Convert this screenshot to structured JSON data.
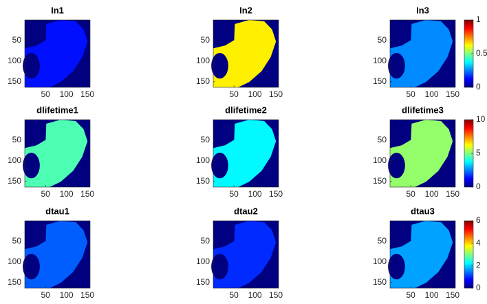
{
  "chart_data": [
    {
      "type": "heatmap",
      "title": "In1",
      "colormap": "jet",
      "clim": [
        0,
        1
      ],
      "background_value": 0,
      "tissue_value": 0.14,
      "xlim": [
        0.5,
        156.5
      ],
      "ylim": [
        0.5,
        163.5
      ],
      "xticks": [
        50,
        100,
        150
      ],
      "yticks": [
        50,
        100,
        150
      ],
      "colorbar": false
    },
    {
      "type": "heatmap",
      "title": "In2",
      "colormap": "jet",
      "clim": [
        0,
        1
      ],
      "background_value": 0,
      "tissue_value": 0.64,
      "xlim": [
        0.5,
        156.5
      ],
      "ylim": [
        0.5,
        163.5
      ],
      "xticks": [
        50,
        100,
        150
      ],
      "yticks": [
        50,
        100,
        150
      ],
      "colorbar": false
    },
    {
      "type": "heatmap",
      "title": "In3",
      "colormap": "jet",
      "clim": [
        0,
        1
      ],
      "background_value": 0,
      "tissue_value": 0.26,
      "xlim": [
        0.5,
        156.5
      ],
      "ylim": [
        0.5,
        163.5
      ],
      "xticks": [
        50,
        100,
        150
      ],
      "yticks": [
        50,
        100,
        150
      ],
      "colorbar": true,
      "cticks": [
        0,
        0.5,
        1
      ]
    },
    {
      "type": "heatmap",
      "title": "dlifetime1",
      "colormap": "jet",
      "clim": [
        0,
        10
      ],
      "background_value": 0,
      "tissue_value": 4.5,
      "xlim": [
        0.5,
        156.5
      ],
      "ylim": [
        0.5,
        163.5
      ],
      "xticks": [
        50,
        100,
        150
      ],
      "yticks": [
        50,
        100,
        150
      ],
      "colorbar": false
    },
    {
      "type": "heatmap",
      "title": "dlifetime2",
      "colormap": "jet",
      "clim": [
        0,
        10
      ],
      "background_value": 0,
      "tissue_value": 3.7,
      "xlim": [
        0.5,
        156.5
      ],
      "ylim": [
        0.5,
        163.5
      ],
      "xticks": [
        50,
        100,
        150
      ],
      "yticks": [
        50,
        100,
        150
      ],
      "colorbar": false
    },
    {
      "type": "heatmap",
      "title": "dlifetime3",
      "colormap": "jet",
      "clim": [
        0,
        10
      ],
      "background_value": 0,
      "tissue_value": 5.2,
      "xlim": [
        0.5,
        156.5
      ],
      "ylim": [
        0.5,
        163.5
      ],
      "xticks": [
        50,
        100,
        150
      ],
      "yticks": [
        50,
        100,
        150
      ],
      "colorbar": true,
      "cticks": [
        0,
        5,
        10
      ]
    },
    {
      "type": "heatmap",
      "title": "dtau1",
      "colormap": "jet",
      "clim": [
        0,
        6
      ],
      "background_value": 0,
      "tissue_value": 1.3,
      "xlim": [
        0.5,
        156.5
      ],
      "ylim": [
        0.5,
        163.5
      ],
      "xticks": [
        50,
        100,
        150
      ],
      "yticks": [
        50,
        100,
        150
      ],
      "colorbar": false
    },
    {
      "type": "heatmap",
      "title": "dtau2",
      "colormap": "jet",
      "clim": [
        0,
        6
      ],
      "background_value": 0,
      "tissue_value": 1.0,
      "xlim": [
        0.5,
        156.5
      ],
      "ylim": [
        0.5,
        163.5
      ],
      "xticks": [
        50,
        100,
        150
      ],
      "yticks": [
        50,
        100,
        150
      ],
      "colorbar": false
    },
    {
      "type": "heatmap",
      "title": "dtau3",
      "colormap": "jet",
      "clim": [
        0,
        6
      ],
      "background_value": 0,
      "tissue_value": 1.7,
      "xlim": [
        0.5,
        156.5
      ],
      "ylim": [
        0.5,
        163.5
      ],
      "xticks": [
        50,
        100,
        150
      ],
      "yticks": [
        50,
        100,
        150
      ],
      "colorbar": true,
      "cticks": [
        0,
        2,
        4,
        6
      ]
    }
  ]
}
